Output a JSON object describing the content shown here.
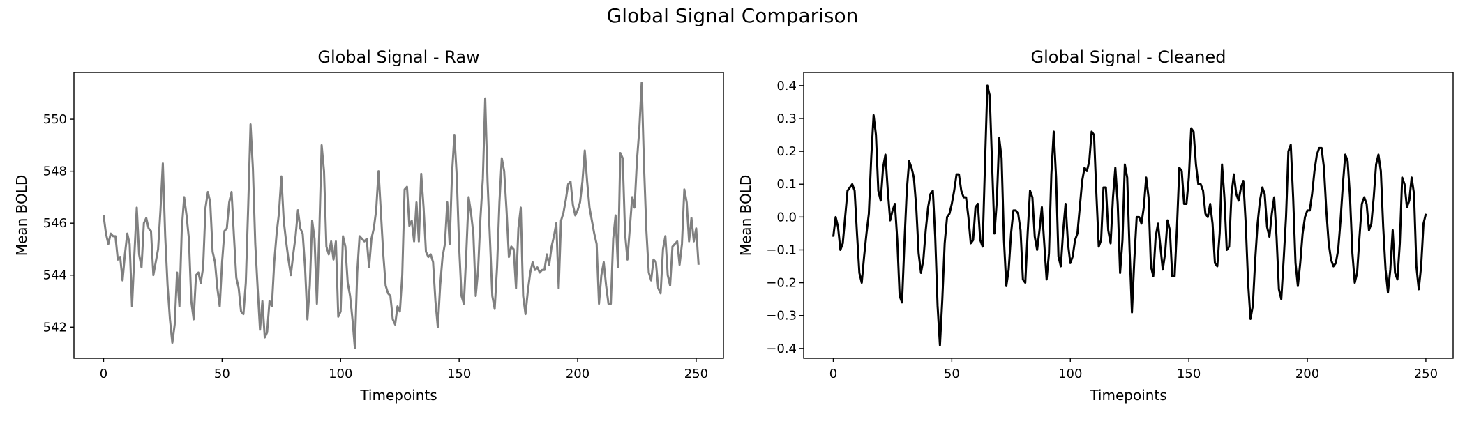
{
  "figure": {
    "suptitle": "Global Signal Comparison"
  },
  "chart_data": [
    {
      "type": "line",
      "title": "Global Signal - Raw",
      "xlabel": "Timepoints",
      "ylabel": "Mean BOLD",
      "xlim": [
        -12.5,
        261.5
      ],
      "ylim": [
        540.8,
        551.8
      ],
      "xticks": [
        0,
        50,
        100,
        150,
        200,
        250
      ],
      "yticks": [
        542,
        544,
        546,
        548,
        550
      ],
      "grid": false,
      "series": [
        {
          "color": "#808080",
          "x_start": 0,
          "x_step": 1,
          "values": [
            546.3,
            545.6,
            545.2,
            545.6,
            545.5,
            545.5,
            544.6,
            544.7,
            543.8,
            544.8,
            545.6,
            545.2,
            542.8,
            544.8,
            546.6,
            544.8,
            544.3,
            546,
            546.2,
            545.8,
            545.7,
            544,
            544.5,
            545,
            546.5,
            548.3,
            545.5,
            543.6,
            542.3,
            541.4,
            542.1,
            544.1,
            542.8,
            545.8,
            547,
            546.3,
            545.4,
            543,
            542.3,
            544,
            544.1,
            543.7,
            544.3,
            546.6,
            547.2,
            546.8,
            544.9,
            544.5,
            543.5,
            542.8,
            544.5,
            545.7,
            545.8,
            546.8,
            547.2,
            545.5,
            543.9,
            543.5,
            542.6,
            542.5,
            543.7,
            546.6,
            549.8,
            548.1,
            545.2,
            543.5,
            541.9,
            543,
            541.6,
            541.8,
            543,
            542.8,
            544.5,
            545.6,
            546.4,
            547.8,
            546.1,
            545.3,
            544.6,
            544,
            544.8,
            545.5,
            546.5,
            545.8,
            545.6,
            544.3,
            542.3,
            543.6,
            546.1,
            545.4,
            542.9,
            545.6,
            549,
            548,
            545.1,
            544.8,
            545.3,
            544.6,
            545.3,
            542.4,
            542.6,
            545.5,
            545.1,
            543.7,
            543.2,
            542.3,
            541.2,
            544.1,
            545.5,
            545.4,
            545.3,
            545.4,
            544.3,
            545.4,
            545.8,
            546.5,
            548,
            546.4,
            544.8,
            543.6,
            543.3,
            543.2,
            542.3,
            542.1,
            542.8,
            542.6,
            544,
            547.3,
            547.4,
            545.9,
            546.1,
            545.3,
            546.8,
            545.3,
            547.9,
            546.6,
            544.9,
            544.7,
            544.8,
            544.5,
            543,
            542,
            543.6,
            544.7,
            545.2,
            546.8,
            545.2,
            547.9,
            549.4,
            547.8,
            545.1,
            543.2,
            542.9,
            544.8,
            547,
            546.4,
            545.6,
            543.2,
            544.2,
            546.2,
            547.7,
            550.8,
            547.6,
            545.4,
            543.2,
            542.7,
            544.3,
            546.8,
            548.5,
            548,
            546.5,
            544.7,
            545.1,
            545,
            543.5,
            545.8,
            546.6,
            543.2,
            542.5,
            543.4,
            544.1,
            544.5,
            544.2,
            544.3,
            544.1,
            544.2,
            544.2,
            544.8,
            544.4,
            545.1,
            545.5,
            546,
            543.5,
            546.1,
            546.4,
            546.9,
            547.5,
            547.6,
            546.7,
            546.3,
            546.5,
            546.8,
            547.6,
            548.8,
            547.6,
            546.6,
            546.1,
            545.6,
            545.2,
            542.9,
            544,
            544.5,
            543.6,
            542.9,
            542.9,
            545.4,
            546.3,
            544.3,
            548.7,
            548.5,
            545.6,
            544.6,
            545.8,
            547,
            546.6,
            548.4,
            549.6,
            551.4,
            548.2,
            545.7,
            544.1,
            543.8,
            544.6,
            544.5,
            543.5,
            543.3,
            545,
            545.5,
            544,
            543.6,
            545.1,
            545.2,
            545.3,
            544.4,
            545.2,
            547.3,
            546.8,
            545.3,
            546.2,
            545.3,
            545.8,
            544.4
          ]
        }
      ]
    },
    {
      "type": "line",
      "title": "Global Signal - Cleaned",
      "xlabel": "Timepoints",
      "ylabel": "Mean BOLD",
      "xlim": [
        -12.5,
        261.5
      ],
      "ylim": [
        -0.43,
        0.44
      ],
      "xticks": [
        0,
        50,
        100,
        150,
        200,
        250
      ],
      "yticks": [
        -0.4,
        -0.3,
        -0.2,
        -0.1,
        0.0,
        0.1,
        0.2,
        0.3,
        0.4
      ],
      "ytick_labels": [
        "−0.4",
        "−0.3",
        "−0.2",
        "−0.1",
        "0.0",
        "0.1",
        "0.2",
        "0.3",
        "0.4"
      ],
      "grid": false,
      "series": [
        {
          "color": "#000000",
          "x_start": 0,
          "x_step": 1,
          "values": [
            -0.06,
            0,
            -0.03,
            -0.1,
            -0.08,
            0,
            0.08,
            0.09,
            0.1,
            0.08,
            -0.05,
            -0.17,
            -0.2,
            -0.12,
            -0.05,
            0.01,
            0.18,
            0.31,
            0.25,
            0.08,
            0.05,
            0.15,
            0.19,
            0.08,
            -0.01,
            0.02,
            0.04,
            -0.07,
            -0.24,
            -0.26,
            -0.08,
            0.08,
            0.17,
            0.15,
            0.12,
            0.03,
            -0.11,
            -0.17,
            -0.13,
            -0.04,
            0.03,
            0.07,
            0.08,
            -0.06,
            -0.27,
            -0.39,
            -0.25,
            -0.08,
            0,
            0.01,
            0.04,
            0.08,
            0.13,
            0.13,
            0.08,
            0.06,
            0.06,
            0,
            -0.08,
            -0.07,
            0.03,
            0.04,
            -0.07,
            -0.09,
            0.16,
            0.4,
            0.37,
            0.16,
            -0.05,
            0.05,
            0.24,
            0.18,
            -0.07,
            -0.21,
            -0.16,
            -0.05,
            0.02,
            0.02,
            0.01,
            -0.04,
            -0.19,
            -0.2,
            -0.05,
            0.08,
            0.06,
            -0.06,
            -0.1,
            -0.04,
            0.03,
            -0.08,
            -0.19,
            -0.11,
            0.13,
            0.26,
            0.12,
            -0.12,
            -0.15,
            -0.04,
            0.04,
            -0.08,
            -0.14,
            -0.12,
            -0.07,
            -0.05,
            0.03,
            0.11,
            0.15,
            0.14,
            0.17,
            0.26,
            0.25,
            0.07,
            -0.09,
            -0.07,
            0.09,
            0.09,
            -0.04,
            -0.08,
            0.06,
            0.15,
            0.04,
            -0.17,
            -0.07,
            0.16,
            0.12,
            -0.1,
            -0.29,
            -0.13,
            0,
            0,
            -0.02,
            0.03,
            0.12,
            0.06,
            -0.15,
            -0.18,
            -0.06,
            -0.02,
            -0.09,
            -0.16,
            -0.11,
            -0.01,
            -0.04,
            -0.18,
            -0.18,
            -0.03,
            0.15,
            0.14,
            0.04,
            0.04,
            0.12,
            0.27,
            0.26,
            0.16,
            0.1,
            0.1,
            0.08,
            0.01,
            0,
            0.04,
            -0.02,
            -0.14,
            -0.15,
            -0.05,
            0.16,
            0.06,
            -0.1,
            -0.09,
            0.07,
            0.13,
            0.07,
            0.05,
            0.09,
            0.11,
            -0.02,
            -0.2,
            -0.31,
            -0.27,
            -0.13,
            -0.02,
            0.05,
            0.09,
            0.07,
            -0.03,
            -0.06,
            0.01,
            0.06,
            -0.06,
            -0.22,
            -0.25,
            -0.13,
            0,
            0.2,
            0.22,
            0.06,
            -0.14,
            -0.21,
            -0.14,
            -0.05,
            0,
            0.02,
            0.02,
            0.07,
            0.14,
            0.19,
            0.21,
            0.21,
            0.15,
            0.02,
            -0.08,
            -0.13,
            -0.15,
            -0.14,
            -0.1,
            -0.01,
            0.1,
            0.19,
            0.17,
            0.06,
            -0.11,
            -0.2,
            -0.17,
            -0.06,
            0.04,
            0.06,
            0.04,
            -0.04,
            -0.02,
            0.06,
            0.16,
            0.19,
            0.14,
            -0.03,
            -0.16,
            -0.23,
            -0.16,
            -0.04,
            -0.17,
            -0.19,
            -0.08,
            0.12,
            0.1,
            0.03,
            0.05,
            0.12,
            0.07,
            -0.15,
            -0.22,
            -0.15,
            -0.02,
            0.01
          ]
        }
      ]
    }
  ]
}
